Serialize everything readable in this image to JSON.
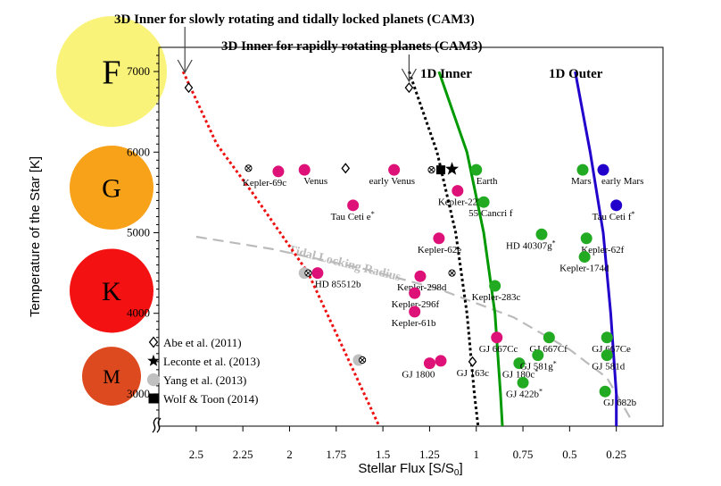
{
  "chart_data": {
    "type": "scatter",
    "title": "",
    "xlabel": "Stellar Flux [S/S",
    "xlabel_sub": "0",
    "xlabel_end": "]",
    "ylabel": "Temperature of the Star [K]",
    "x_reversed": true,
    "xlim": [
      2.7,
      0.0
    ],
    "ylim": [
      2600,
      7300
    ],
    "x_ticks": [
      {
        "v": 2.5,
        "label": "2.5"
      },
      {
        "v": 2.25,
        "label": "2.25"
      },
      {
        "v": 2.0,
        "label": "2"
      },
      {
        "v": 1.75,
        "label": "1.75"
      },
      {
        "v": 1.5,
        "label": "1.5"
      },
      {
        "v": 1.25,
        "label": "1.25"
      },
      {
        "v": 1.0,
        "label": "1"
      },
      {
        "v": 0.75,
        "label": "0.75"
      },
      {
        "v": 0.5,
        "label": "0.5"
      },
      {
        "v": 0.25,
        "label": "0.25"
      }
    ],
    "y_ticks": [
      {
        "v": 3000,
        "label": "3000"
      },
      {
        "v": 4000,
        "label": "4000"
      },
      {
        "v": 5000,
        "label": "5000"
      },
      {
        "v": 6000,
        "label": "6000"
      },
      {
        "v": 7000,
        "label": "7000"
      }
    ],
    "spectral_classes": [
      {
        "label": "F",
        "temp": 7000,
        "color": "#faf37a",
        "size": "large"
      },
      {
        "label": "G",
        "temp": 5560,
        "color": "#f8a21a",
        "size": "medium"
      },
      {
        "label": "K",
        "temp": 4280,
        "color": "#f41111",
        "size": "medium"
      },
      {
        "label": "M",
        "temp": 3220,
        "color": "#dd4a1f",
        "size": "small"
      }
    ],
    "annotations": [
      {
        "text": "3D Inner for slowly rotating and tidally locked planets (CAM3)",
        "x": 2.57,
        "y": 6900
      },
      {
        "text": "3D Inner for rapidly rotating planets (CAM3)",
        "x": 1.36,
        "y": 6750
      }
    ],
    "boundary_labels": [
      {
        "text": "1D Inner",
        "color": "#009900"
      },
      {
        "text": "1D Outer",
        "color": "#2200cc"
      }
    ],
    "tidal_locking_label": "Tidal Locking Radius",
    "series": [
      {
        "name": "3D Inner for slowly rotating and tidally locked planets (CAM3)",
        "style": "dotted-red",
        "color": "#ee1111",
        "points": [
          [
            2.57,
            7000
          ],
          [
            2.39,
            6100
          ],
          [
            2.2,
            5500
          ],
          [
            1.9,
            4500
          ],
          [
            1.7,
            3500
          ],
          [
            1.52,
            2600
          ]
        ]
      },
      {
        "name": "3D Inner for rapidly rotating planets (CAM3)",
        "style": "dotted-black",
        "color": "#000000",
        "points": [
          [
            1.36,
            7000
          ],
          [
            1.21,
            6000
          ],
          [
            1.11,
            5000
          ],
          [
            1.05,
            4000
          ],
          [
            1.01,
            3000
          ],
          [
            0.99,
            2600
          ]
        ]
      },
      {
        "name": "1D Inner",
        "style": "solid",
        "color": "#009900",
        "points": [
          [
            1.2,
            7000
          ],
          [
            1.05,
            6000
          ],
          [
            0.96,
            5000
          ],
          [
            0.9,
            4000
          ],
          [
            0.87,
            3000
          ],
          [
            0.86,
            2600
          ]
        ]
      },
      {
        "name": "1D Outer",
        "style": "solid",
        "color": "#2200cc",
        "points": [
          [
            0.47,
            7000
          ],
          [
            0.39,
            6000
          ],
          [
            0.32,
            5000
          ],
          [
            0.28,
            4000
          ],
          [
            0.25,
            3000
          ],
          [
            0.25,
            2600
          ]
        ]
      },
      {
        "name": "Tidal Locking Radius",
        "style": "dashed",
        "color": "#bbbbbb",
        "points": [
          [
            2.5,
            4950
          ],
          [
            2.1,
            4800
          ],
          [
            1.6,
            4550
          ],
          [
            1.2,
            4300
          ],
          [
            0.8,
            3950
          ],
          [
            0.5,
            3550
          ],
          [
            0.3,
            3200
          ],
          [
            0.17,
            2680
          ]
        ]
      }
    ],
    "planets": [
      {
        "name": "Kepler-69c",
        "x": 2.06,
        "y": 5760,
        "color": "#dd1177",
        "lx": -40,
        "ly": 16
      },
      {
        "name": "Venus",
        "x": 1.92,
        "y": 5780,
        "color": "#dd1177",
        "lx": -1,
        "ly": 16
      },
      {
        "name": "early Venus",
        "x": 1.44,
        "y": 5780,
        "color": "#dd1177",
        "lx": -28,
        "ly": 16
      },
      {
        "name": "Tau Ceti e",
        "sup": "*",
        "x": 1.66,
        "y": 5340,
        "color": "#dd1177",
        "lx": -25,
        "ly": 16
      },
      {
        "name": "Kepler-22b",
        "x": 1.1,
        "y": 5520,
        "color": "#dd1177",
        "lx": -22,
        "ly": 16
      },
      {
        "name": "Kepler-62e",
        "x": 1.2,
        "y": 4930,
        "color": "#dd1177",
        "lx": -24,
        "ly": 16
      },
      {
        "name": "HD 85512b",
        "x": 1.85,
        "y": 4500,
        "color": "#dd1177",
        "lx": -3,
        "ly": 16
      },
      {
        "name": "Kepler-298d",
        "x": 1.3,
        "y": 4460,
        "color": "#dd1177",
        "lx": -26,
        "ly": 16
      },
      {
        "name": "Kepler-296f",
        "x": 1.33,
        "y": 4250,
        "color": "#dd1177",
        "lx": -26,
        "ly": 16
      },
      {
        "name": "Kepler-61b",
        "x": 1.33,
        "y": 4020,
        "color": "#dd1177",
        "lx": -26,
        "ly": 16
      },
      {
        "name": "GJ 667Cc",
        "x": 0.89,
        "y": 3700,
        "color": "#dd1177",
        "lx": -20,
        "ly": 16
      },
      {
        "name": "GJ 1800",
        "x": 1.25,
        "y": 3380,
        "color": "#dd1177",
        "lx": -31,
        "ly": 16
      },
      {
        "name": "",
        "x": 1.19,
        "y": 3410,
        "color": "#dd1177",
        "lx": 0,
        "ly": 0
      },
      {
        "name": "GJ 163c",
        "x": 1.01,
        "y": 3400,
        "color": "none",
        "lx": -20,
        "ly": 16
      },
      {
        "name": "Earth",
        "x": 1.0,
        "y": 5780,
        "color": "#22aa22",
        "lx": 0,
        "ly": 16
      },
      {
        "name": "55 Cancri f",
        "x": 0.96,
        "y": 5380,
        "color": "#22aa22",
        "lx": -17,
        "ly": 16
      },
      {
        "name": "HD 40307g",
        "sup": "*",
        "x": 0.65,
        "y": 4980,
        "color": "#22aa22",
        "lx": -40,
        "ly": 16
      },
      {
        "name": "Kepler-62f",
        "x": 0.41,
        "y": 4930,
        "color": "#22aa22",
        "lx": -6,
        "ly": 16
      },
      {
        "name": "Kepler-174d",
        "x": 0.42,
        "y": 4700,
        "color": "#22aa22",
        "lx": -28,
        "ly": 16
      },
      {
        "name": "Kepler-283c",
        "x": 0.9,
        "y": 4340,
        "color": "#22aa22",
        "lx": -26,
        "ly": 16
      },
      {
        "name": "Mars",
        "x": 0.43,
        "y": 5780,
        "color": "#22aa22",
        "lx": -13,
        "ly": 16
      },
      {
        "name": "early Mars",
        "x": 0.32,
        "y": 5780,
        "color": "#2200cc",
        "lx": -2,
        "ly": 16
      },
      {
        "name": "Tau Ceti f",
        "sup": "*",
        "x": 0.25,
        "y": 5340,
        "color": "#2200cc",
        "lx": -27,
        "ly": 16
      },
      {
        "name": "GJ 667Cf",
        "x": 0.61,
        "y": 3700,
        "color": "#22aa22",
        "lx": -22,
        "ly": 16
      },
      {
        "name": "GJ 667Ce",
        "x": 0.3,
        "y": 3700,
        "color": "#22aa22",
        "lx": -17,
        "ly": 16
      },
      {
        "name": "GJ 180c",
        "sup": "*",
        "x": 0.77,
        "y": 3380,
        "color": "#22aa22",
        "lx": -19,
        "ly": 16
      },
      {
        "name": "GJ 581g",
        "sup": "*",
        "x": 0.67,
        "y": 3480,
        "color": "#22aa22",
        "lx": -20,
        "ly": 16
      },
      {
        "name": "GJ 581d",
        "x": 0.3,
        "y": 3480,
        "color": "#22aa22",
        "lx": -17,
        "ly": 16
      },
      {
        "name": "GJ 422b",
        "sup": "*",
        "x": 0.75,
        "y": 3140,
        "color": "#22aa22",
        "lx": -19,
        "ly": 16
      },
      {
        "name": "GJ 682b",
        "x": 0.31,
        "y": 3030,
        "color": "#22aa22",
        "lx": -2,
        "ly": 16
      }
    ],
    "markers": [
      {
        "kind": "diamond",
        "x": 2.54,
        "y": 6800
      },
      {
        "kind": "diamond",
        "x": 1.7,
        "y": 5800
      },
      {
        "kind": "diamond",
        "x": 1.36,
        "y": 6800
      },
      {
        "kind": "diamond",
        "x": 1.02,
        "y": 3400
      },
      {
        "kind": "otimes",
        "x": 2.22,
        "y": 5800
      },
      {
        "kind": "otimes",
        "x": 1.9,
        "y": 4500
      },
      {
        "kind": "otimes",
        "x": 1.61,
        "y": 3420
      },
      {
        "kind": "otimes",
        "x": 1.24,
        "y": 5780
      },
      {
        "kind": "otimes",
        "x": 1.13,
        "y": 4500
      },
      {
        "kind": "gray",
        "x": 1.92,
        "y": 4500
      },
      {
        "kind": "gray",
        "x": 1.63,
        "y": 3420
      },
      {
        "kind": "square",
        "x": 1.19,
        "y": 5780
      },
      {
        "kind": "star",
        "x": 1.13,
        "y": 5790
      }
    ],
    "legend": {
      "placement": "bottom-left",
      "items": [
        {
          "kind": "diamond",
          "label": "Abe et al. (2011)"
        },
        {
          "kind": "star",
          "label": "Leconte et al. (2013)"
        },
        {
          "kind": "gray",
          "label": "Yang et al. (2013)"
        },
        {
          "kind": "square",
          "label": "Wolf & Toon (2014)"
        }
      ]
    }
  }
}
